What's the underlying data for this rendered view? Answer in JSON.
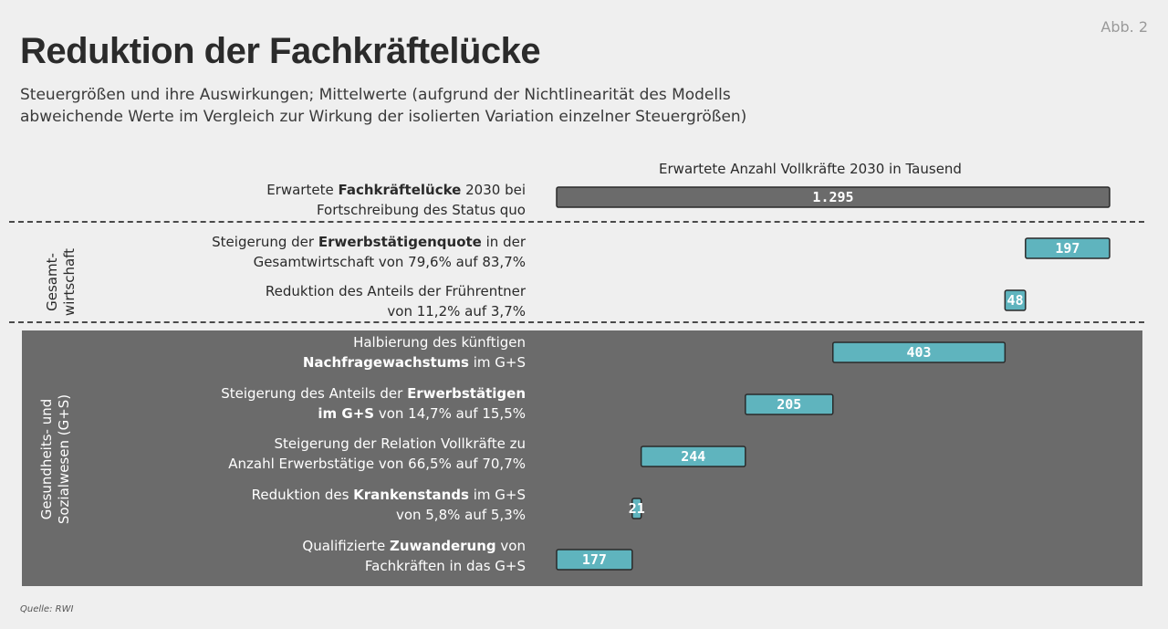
{
  "figure_label": "Abb. 2",
  "title": "Reduktion der Fachkräftelücke",
  "subtitle_line1": "Steuergrößen und ihre Auswirkungen; Mittelwerte (aufgrund der Nichtlinearität des Modells",
  "subtitle_line2": "abweichende Werte im Vergleich zur Wirkung der isolierten Variation einzelner Steuergrößen)",
  "source": "Quelle: RWI",
  "groups": {
    "gesamt_line1": "Gesamt-",
    "gesamt_line2": "wirtschaft",
    "gs_line1": "Gesundheits- und",
    "gs_line2": "Sozialwesen (G+S)"
  },
  "rows": [
    {
      "pre": "Erwartete ",
      "bold": "Fachkräftelücke",
      "post": " 2030 bei",
      "line2_pre": "Fortschreibung des Status quo",
      "line2_bold": "",
      "line2_post": ""
    },
    {
      "pre": "Steigerung der ",
      "bold": "Erwerbstätigenquote",
      "post": " in der",
      "line2_pre": "Gesamtwirtschaft von 79,6% auf 83,7%",
      "line2_bold": "",
      "line2_post": ""
    },
    {
      "pre": "Reduktion des Anteils der Frührentner",
      "bold": "",
      "post": "",
      "line2_pre": "von 11,2% auf 3,7%",
      "line2_bold": "",
      "line2_post": ""
    },
    {
      "pre": "Halbierung des künftigen",
      "bold": "",
      "post": "",
      "line2_pre": "",
      "line2_bold": "Nachfragewachstums",
      "line2_post": " im G+S"
    },
    {
      "pre": "Steigerung des Anteils der ",
      "bold": "Erwerbstätigen",
      "post": "",
      "line2_pre": "",
      "line2_bold": "im G+S",
      "line2_post": " von 14,7% auf 15,5%"
    },
    {
      "pre": "Steigerung der Relation Vollkräfte zu",
      "bold": "",
      "post": "",
      "line2_pre": "Anzahl Erwerbstätige von 66,5% auf 70,7%",
      "line2_bold": "",
      "line2_post": ""
    },
    {
      "pre": "Reduktion des ",
      "bold": "Krankenstands",
      "post": " im G+S",
      "line2_pre": "von 5,8% auf 5,3%",
      "line2_bold": "",
      "line2_post": ""
    },
    {
      "pre": "Qualifizierte ",
      "bold": "Zuwanderung",
      "post": " von",
      "line2_pre": "Fachkräften in das G+S",
      "line2_bold": "",
      "line2_post": ""
    }
  ],
  "chart_data": {
    "type": "bar",
    "subtype": "waterfall",
    "axis_title": "Erwartete Anzahl Vollkräfte 2030 in Tausend",
    "categories": [
      "Erwartete Fachkräftelücke 2030 bei Fortschreibung des Status quo",
      "Steigerung der Erwerbstätigenquote in der Gesamtwirtschaft von 79,6% auf 83,7%",
      "Reduktion des Anteils der Frührentner von 11,2% auf 3,7%",
      "Halbierung des künftigen Nachfragewachstums im G+S",
      "Steigerung des Anteils der Erwerbstätigen im G+S von 14,7% auf 15,5%",
      "Steigerung der Relation Vollkräfte zu Anzahl Erwerbstätige von 66,5% auf 70,7%",
      "Reduktion des Krankenstands im G+S von 5,8% auf 5,3%",
      "Qualifizierte Zuwanderung von Fachkräften in das G+S"
    ],
    "values": [
      1295,
      197,
      48,
      403,
      205,
      244,
      21,
      177
    ],
    "value_labels": [
      "1.295",
      "197",
      "48",
      "403",
      "205",
      "244",
      "21",
      "177"
    ],
    "xlim": [
      0,
      1295
    ],
    "colors": {
      "total": "#6b6b6b",
      "step": "#5fb4be",
      "total_label": "#ffffff",
      "step_label": "#ffffff"
    }
  }
}
